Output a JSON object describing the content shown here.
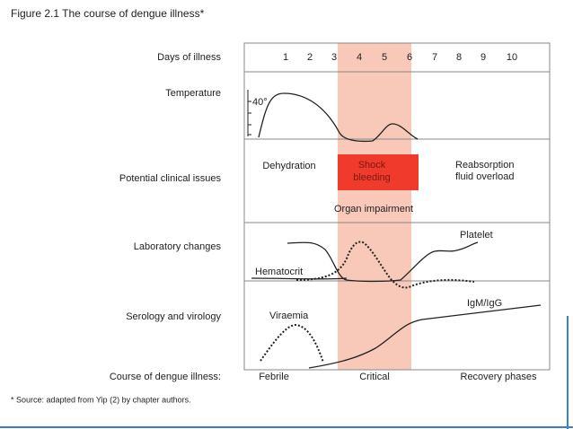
{
  "title": "Figure 2.1 The course of dengue illness*",
  "rows": [
    "Days of illness",
    "Temperature",
    "Potential clinical issues",
    "Laboratory changes",
    "Serology and virology",
    "Course of dengue illness:"
  ],
  "days": [
    "1",
    "2",
    "3",
    "4",
    "5",
    "6",
    "7",
    "8",
    "9",
    "10"
  ],
  "temperature": {
    "label": "40°"
  },
  "clinical": [
    "Dehydration",
    "Shock",
    "bleeding",
    "Reabsorption",
    "fluid overload",
    "Organ impairment"
  ],
  "lab": [
    "Platelet",
    "Hematocrit"
  ],
  "serology": [
    "Viraemia",
    "IgM/IgG"
  ],
  "phases": [
    "Febrile",
    "Critical",
    "Recovery phases"
  ],
  "footnote": "* Source: adapted from Yip (2) by chapter authors."
}
